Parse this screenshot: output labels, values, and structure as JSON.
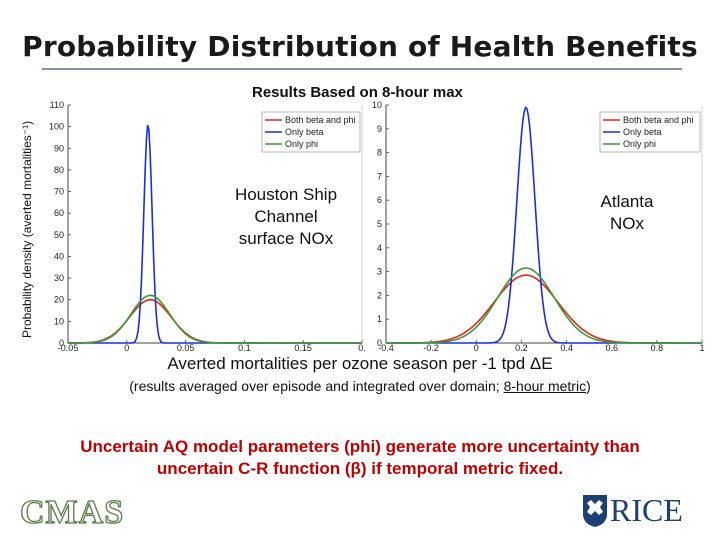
{
  "slide": {
    "title": "Probability Distribution of Health Benefits",
    "ylabel": "Probability density (averted mortalities⁻¹)",
    "subtitle": "Results Based on 8-hour max",
    "xlabel": "Averted mortalities per ozone season per -1 tpd ΔE",
    "note_pre": "(results averaged over episode and integrated over domain; ",
    "note_underlined": "8-hour metric",
    "note_post": ")",
    "conclusion": "Uncertain AQ model parameters (phi) generate more uncertainty than uncertain C-R function (β) if temporal metric fixed.",
    "logo_left": "CMAS",
    "logo_right": "RICE"
  },
  "colors": {
    "both": "#e3261b",
    "beta": "#1c2fd6",
    "phi": "#3a9a35",
    "title_rule": "#8a8fb0",
    "conclusion": "#c00000"
  },
  "chart_data": [
    {
      "type": "line",
      "annotation": "Houston Ship Channel surface NOx",
      "xlim": [
        -0.05,
        0.2
      ],
      "ylim": [
        0,
        110
      ],
      "xticks": [
        "-0.05",
        "0",
        "0.05",
        "0.1",
        "0.15",
        "0."
      ],
      "yticks": [
        "0",
        "10",
        "20",
        "30",
        "40",
        "50",
        "60",
        "70",
        "80",
        "90",
        "100",
        "110"
      ],
      "legend": [
        "Both beta and phi",
        "Only beta",
        "Only phi"
      ],
      "legend_position": "top-right",
      "series": [
        {
          "name": "Both beta and phi",
          "color": "#e3261b",
          "mean": 0.02,
          "sd": 0.0175,
          "peak": 20
        },
        {
          "name": "Only beta",
          "color": "#1c2fd6",
          "mean": 0.018,
          "sd": 0.0035,
          "peak": 101
        },
        {
          "name": "Only phi",
          "color": "#3a9a35",
          "mean": 0.02,
          "sd": 0.0165,
          "peak": 22
        }
      ]
    },
    {
      "type": "line",
      "annotation": "Atlanta NOx",
      "xlim": [
        -0.4,
        1.0
      ],
      "ylim": [
        0,
        10
      ],
      "xticks": [
        "-0.4",
        "-0.2",
        "0",
        "0.2",
        "0.4",
        "0.6",
        "0.8",
        "1"
      ],
      "yticks": [
        "0",
        "1",
        "2",
        "3",
        "4",
        "5",
        "6",
        "7",
        "8",
        "9",
        "10"
      ],
      "legend": [
        "Both beta and phi",
        "Only beta",
        "Only phi"
      ],
      "legend_position": "top-right",
      "series": [
        {
          "name": "Both beta and phi",
          "color": "#e3261b",
          "mean": 0.22,
          "sd": 0.14,
          "peak": 2.85
        },
        {
          "name": "Only beta",
          "color": "#1c2fd6",
          "mean": 0.22,
          "sd": 0.04,
          "peak": 9.9
        },
        {
          "name": "Only phi",
          "color": "#3a9a35",
          "mean": 0.22,
          "sd": 0.125,
          "peak": 3.15
        }
      ]
    }
  ]
}
